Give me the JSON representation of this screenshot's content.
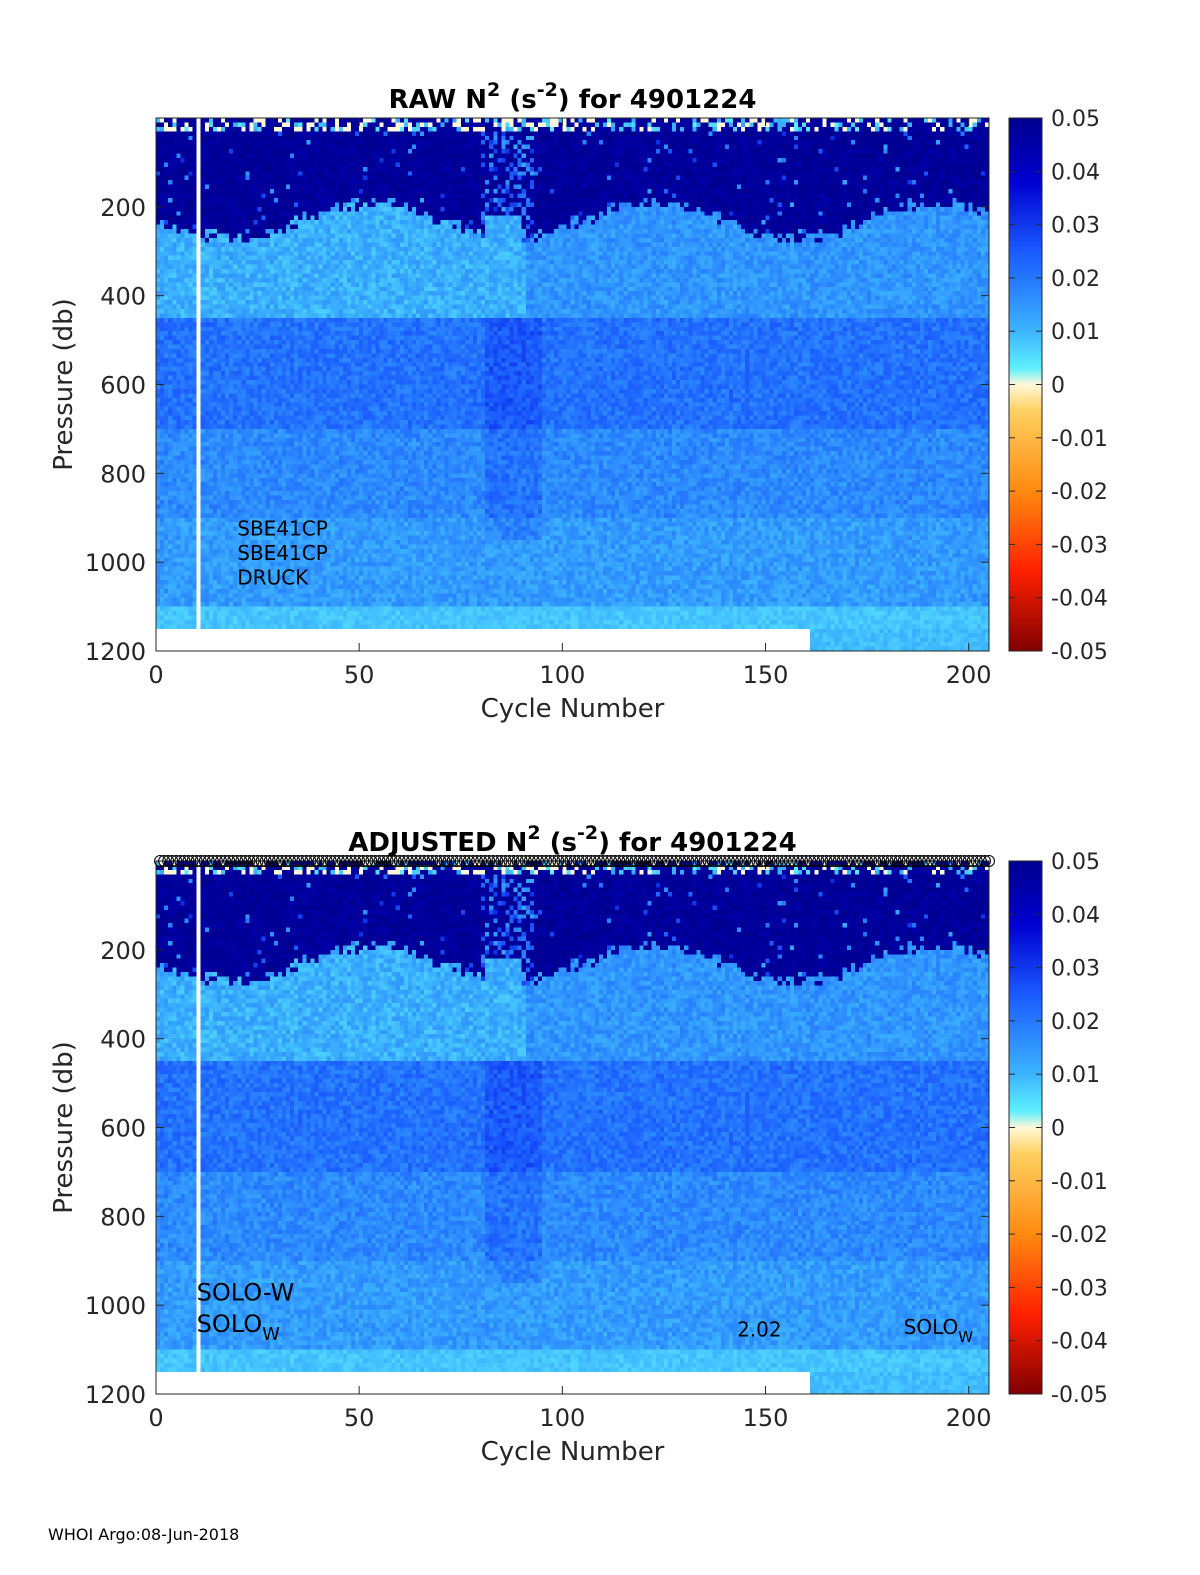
{
  "footer": "WHOI Argo:08-Jun-2018",
  "chart_data": [
    {
      "type": "heatmap",
      "title_parts": {
        "pre": "RAW N",
        "sup1": "2",
        "mid": " (s",
        "sup2": "-2",
        "post": ") for 4901224"
      },
      "xlabel": "Cycle Number",
      "ylabel": "Pressure (db)",
      "xlim": [
        0,
        205
      ],
      "ylim": [
        0,
        1200
      ],
      "xticks": [
        0,
        50,
        100,
        150,
        200
      ],
      "xtick_labels": [
        "0",
        "50",
        "100",
        "150",
        "200"
      ],
      "yticks": [
        200,
        400,
        600,
        800,
        1000,
        1200
      ],
      "ytick_labels": [
        "200",
        "400",
        "600",
        "800",
        "1000",
        "1200"
      ],
      "colorbar": {
        "range": [
          -0.05,
          0.05
        ],
        "ticks": [
          0.05,
          0.04,
          0.03,
          0.02,
          0.01,
          0,
          -0.01,
          -0.02,
          -0.03,
          -0.04,
          -0.05
        ],
        "tick_labels": [
          "0.05",
          "0.04",
          "0.03",
          "0.02",
          "0.01",
          "0",
          "-0.01",
          "-0.02",
          "-0.03",
          "-0.04",
          "-0.05"
        ]
      },
      "annotations": [
        {
          "text": "SBE41CP",
          "x": 20,
          "y": 940
        },
        {
          "text": "SBE41CP",
          "x": 20,
          "y": 995
        },
        {
          "text": "DRUCK",
          "x": 20,
          "y": 1050
        }
      ],
      "data_description": "Stratification N^2 vs cycle and pressure: ~0.05 (dark blue) above ~250 db, ~0.01 (cyan) 250-450 db, ~0.02-0.025 from 450-700 db, decreasing to ~0.01 near 1100 db; missing data at cycle ~11 and near 1150-1200 db"
    },
    {
      "type": "heatmap",
      "title_parts": {
        "pre": "ADJUSTED N",
        "sup1": "2",
        "mid": " (s",
        "sup2": "-2",
        "post": ") for 4901224"
      },
      "xlabel": "Cycle Number",
      "ylabel": "Pressure (db)",
      "xlim": [
        0,
        205
      ],
      "ylim": [
        0,
        1200
      ],
      "xticks": [
        0,
        50,
        100,
        150,
        200
      ],
      "xtick_labels": [
        "0",
        "50",
        "100",
        "150",
        "200"
      ],
      "yticks": [
        200,
        400,
        600,
        800,
        1000,
        1200
      ],
      "ytick_labels": [
        "200",
        "400",
        "600",
        "800",
        "1000",
        "1200"
      ],
      "colorbar": {
        "range": [
          -0.05,
          0.05
        ],
        "ticks": [
          0.05,
          0.04,
          0.03,
          0.02,
          0.01,
          0,
          -0.01,
          -0.02,
          -0.03,
          -0.04,
          -0.05
        ],
        "tick_labels": [
          "0.05",
          "0.04",
          "0.03",
          "0.02",
          "0.01",
          "0",
          "-0.01",
          "-0.02",
          "-0.03",
          "-0.04",
          "-0.05"
        ]
      },
      "marker_row": {
        "cycle_start": 1,
        "cycle_end": 205,
        "pressure": 0
      },
      "annotations": [
        {
          "text": "SOLO-W",
          "x": 10,
          "y": 990
        },
        {
          "text": "SOLO",
          "sub": "W",
          "x": 10,
          "y": 1060
        },
        {
          "text": "2.02",
          "x": 143,
          "y": 1070
        },
        {
          "text": "SOLO",
          "sub": "W",
          "x": 184,
          "y": 1065
        }
      ],
      "data_description": "Same as RAW; adjusted profile identical in appearance"
    }
  ]
}
